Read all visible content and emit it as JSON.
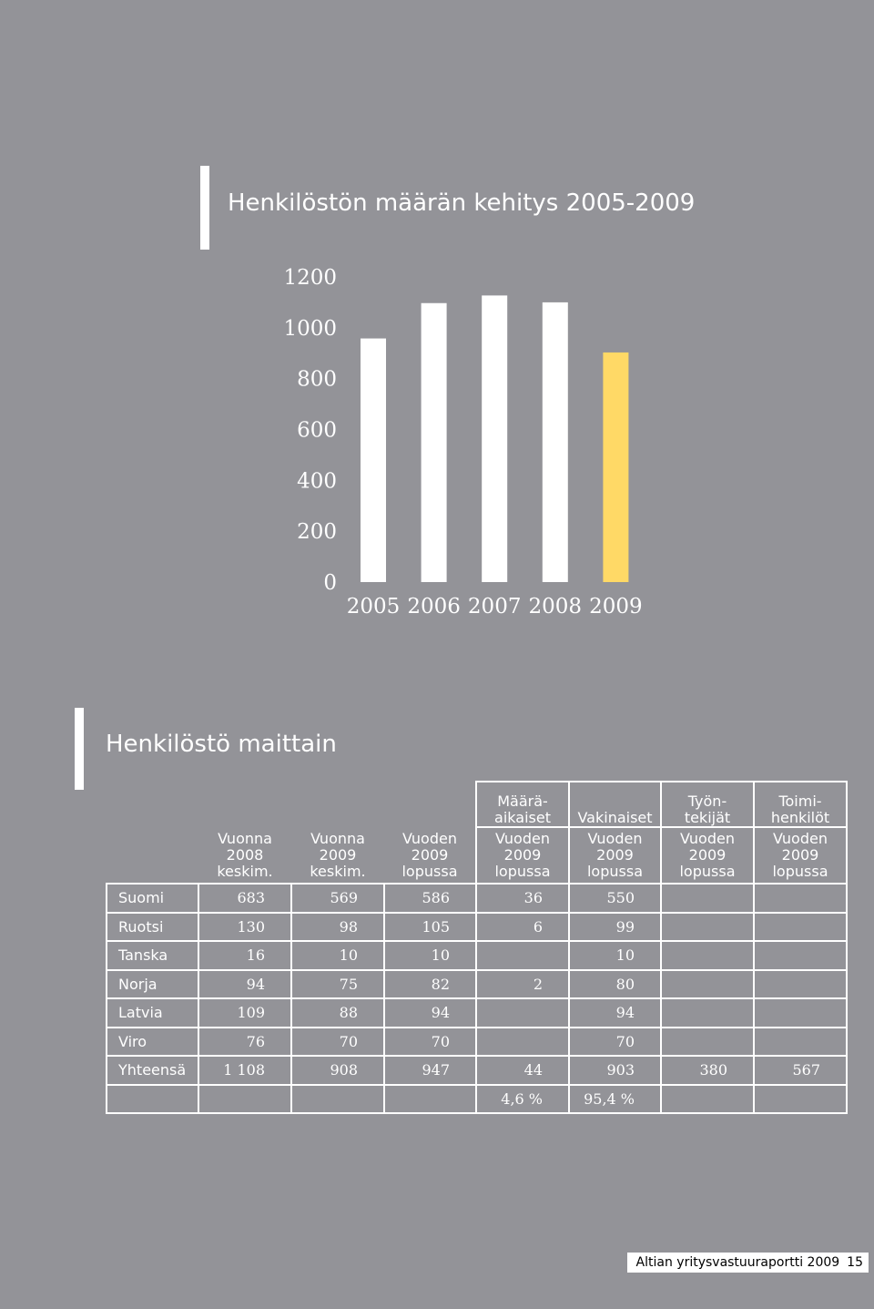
{
  "chart_title": "Henkilöstön määrän kehitys 2005-2009",
  "chart_data": {
    "type": "bar",
    "title": "Henkilöstön määrän kehitys 2005-2009",
    "categories": [
      "2005",
      "2006",
      "2007",
      "2008",
      "2009"
    ],
    "values": [
      958,
      1097,
      1127,
      1100,
      903
    ],
    "ylim": [
      0,
      1200
    ],
    "yticks": [
      0,
      200,
      400,
      600,
      800,
      1000,
      1200
    ],
    "grid": false,
    "bar_colors": [
      "#ffffff",
      "#ffffff",
      "#ffffff",
      "#ffffff",
      "#ffd966"
    ]
  },
  "table_title": "Henkilöstö maittain",
  "table": {
    "group_headers": [
      "Määrä-\naikaiset",
      "Vakinaiset",
      "Työn-\ntekijät",
      "Toimi-\nhenkilöt"
    ],
    "column_headers": [
      "Vuonna\n2008\nkeskim.",
      "Vuonna\n2009\nkeskim.",
      "Vuoden\n2009\nlopussa",
      "Vuoden\n2009\nlopussa",
      "Vuoden\n2009\nlopussa",
      "Vuoden\n2009\nlopussa",
      "Vuoden\n2009\nlopussa"
    ],
    "rows": [
      {
        "label": "Suomi",
        "cells": [
          "683",
          "569",
          "586",
          "36",
          "550",
          "",
          ""
        ]
      },
      {
        "label": "Ruotsi",
        "cells": [
          "130",
          "98",
          "105",
          "6",
          "99",
          "",
          ""
        ]
      },
      {
        "label": "Tanska",
        "cells": [
          "16",
          "10",
          "10",
          "",
          "10",
          "",
          ""
        ]
      },
      {
        "label": "Norja",
        "cells": [
          "94",
          "75",
          "82",
          "2",
          "80",
          "",
          ""
        ]
      },
      {
        "label": "Latvia",
        "cells": [
          "109",
          "88",
          "94",
          "",
          "94",
          "",
          ""
        ]
      },
      {
        "label": "Viro",
        "cells": [
          "76",
          "70",
          "70",
          "",
          "70",
          "",
          ""
        ]
      },
      {
        "label": "Yhteensä",
        "cells": [
          "1 108",
          "908",
          "947",
          "44",
          "903",
          "380",
          "567"
        ]
      },
      {
        "label": "",
        "cells": [
          "",
          "",
          "",
          "4,6 %",
          "95,4 %",
          "",
          ""
        ]
      }
    ]
  },
  "footer": {
    "text": "Altian yritysvastuuraportti 2009",
    "page": "15"
  }
}
